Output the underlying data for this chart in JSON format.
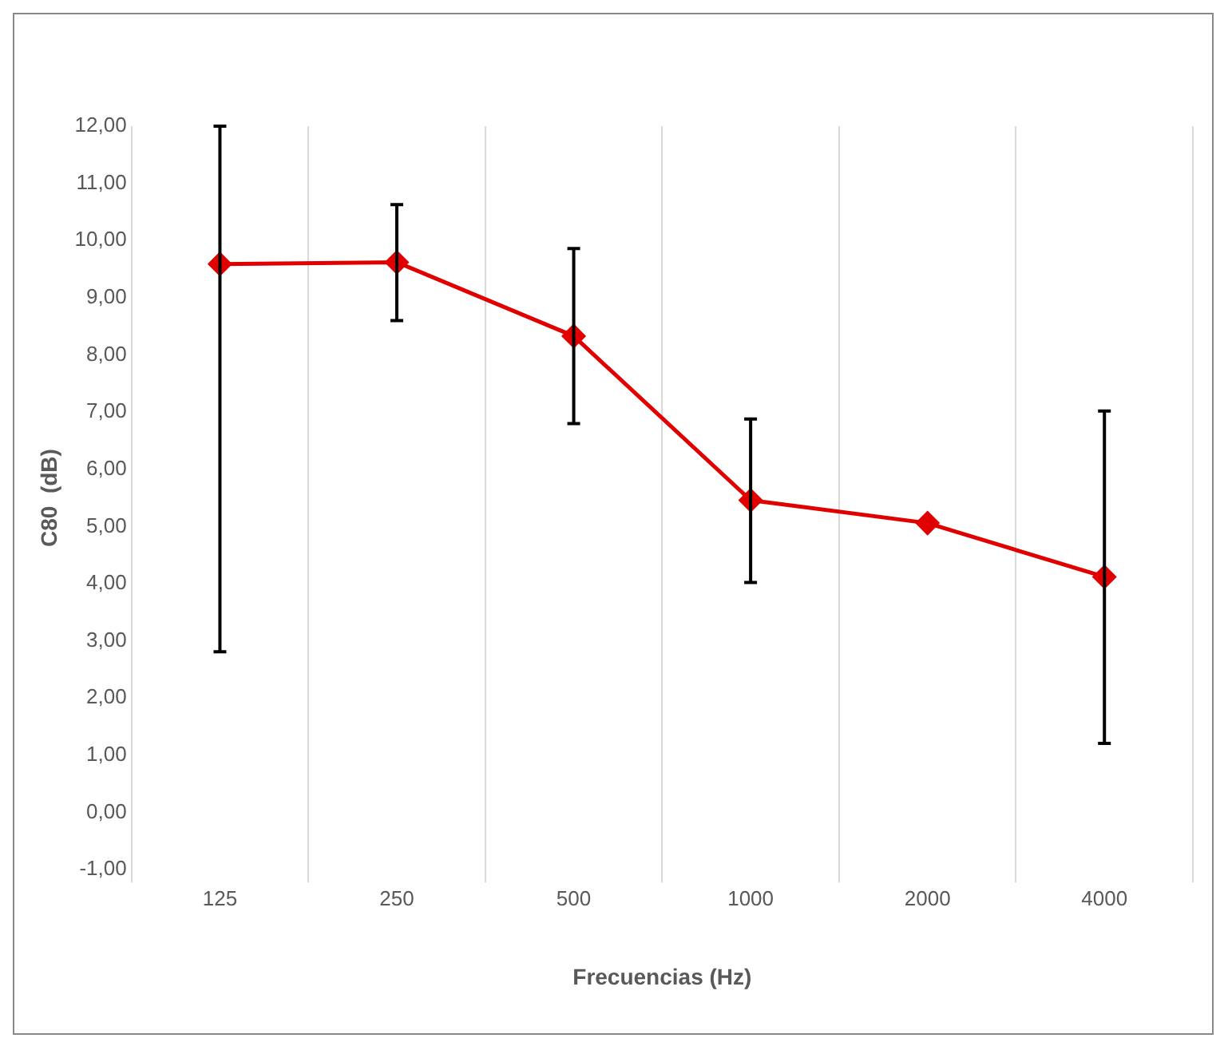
{
  "chart_data": {
    "type": "line",
    "xlabel": "Frecuencias (Hz)",
    "ylabel": "C80  (dB)",
    "categories": [
      "125",
      "250",
      "500",
      "1000",
      "2000",
      "4000"
    ],
    "series": [
      {
        "color": "#e00000",
        "values": [
          9.59,
          9.62,
          8.33,
          5.46,
          5.06,
          4.12
        ],
        "errors": [
          [
            2.81,
            12
          ],
          [
            8.6,
            10.63
          ],
          [
            6.8,
            9.86
          ],
          [
            4.02,
            6.88
          ],
          null,
          [
            1.21,
            7.02
          ]
        ]
      }
    ],
    "ylim": [
      -1,
      12
    ],
    "yticks": [
      {
        "value": -1,
        "label": "-1,00"
      },
      {
        "value": 0,
        "label": "0,00"
      },
      {
        "value": 1,
        "label": "1,00"
      },
      {
        "value": 2,
        "label": "2,00"
      },
      {
        "value": 3,
        "label": "3,00"
      },
      {
        "value": 4,
        "label": "4,00"
      },
      {
        "value": 5,
        "label": "5,00"
      },
      {
        "value": 6,
        "label": "6,00"
      },
      {
        "value": 7,
        "label": "7,00"
      },
      {
        "value": 8,
        "label": "8,00"
      },
      {
        "value": 9,
        "label": "9,00"
      },
      {
        "value": 10,
        "label": "10,00"
      },
      {
        "value": 11,
        "label": "11,00"
      },
      {
        "value": 12,
        "label": "12,00"
      }
    ],
    "grid": "x",
    "legend": false,
    "marker": "diamond",
    "line_style": "solid"
  }
}
